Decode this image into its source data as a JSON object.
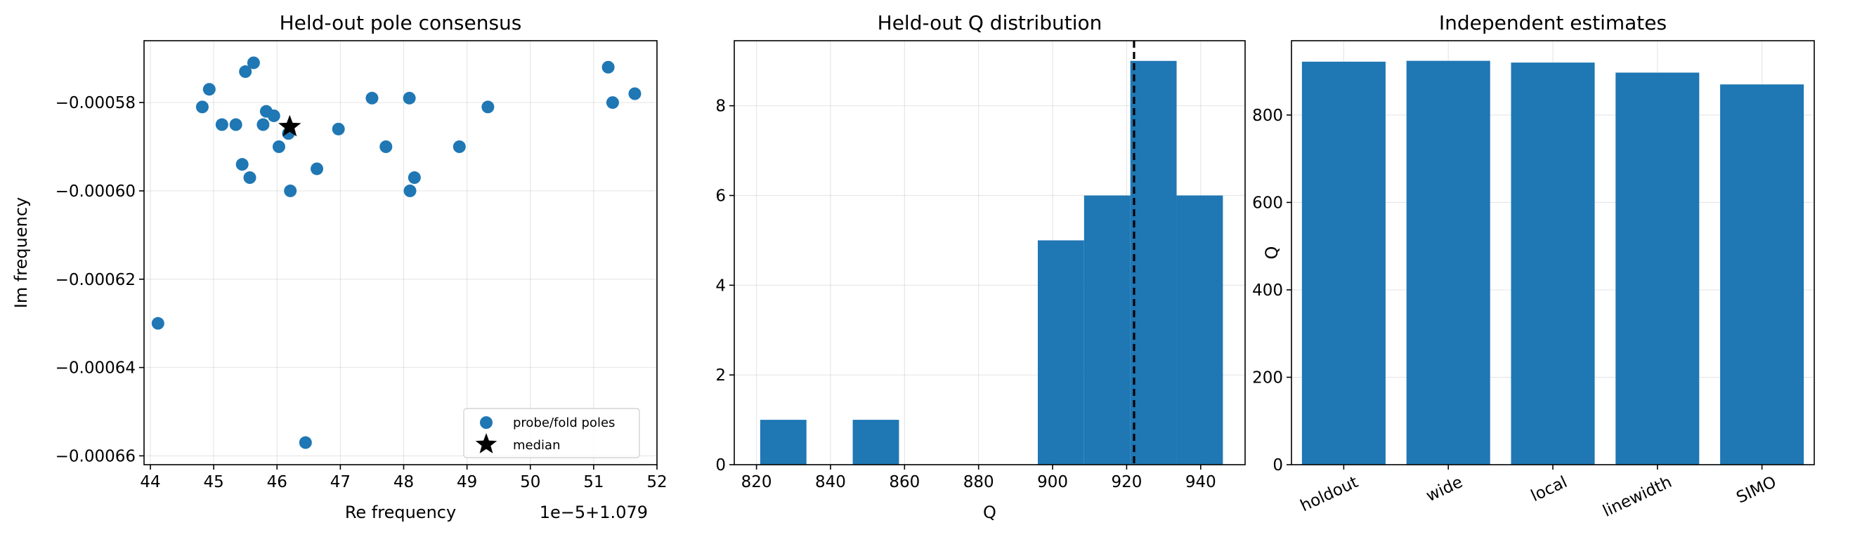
{
  "chart_data": [
    {
      "type": "scatter",
      "title": "Held-out pole consensus",
      "xlabel": "Re frequency",
      "ylabel": "Im frequency",
      "x_offset_text": "1e−5+1.079",
      "xlim": [
        43.9,
        52.0
      ],
      "ylim": [
        -0.000662,
        -0.000566
      ],
      "xticks": [
        44,
        45,
        46,
        47,
        48,
        49,
        50,
        51,
        52
      ],
      "xtick_labels": [
        "44",
        "45",
        "46",
        "47",
        "48",
        "49",
        "50",
        "51",
        "52"
      ],
      "yticks": [
        -0.00066,
        -0.00064,
        -0.00062,
        -0.0006,
        -0.00058
      ],
      "ytick_labels": [
        "−0.00066",
        "−0.00064",
        "−0.00062",
        "−0.00060",
        "−0.00058"
      ],
      "grid": true,
      "legend_position": "lower-right",
      "series": [
        {
          "name": "probe/fold poles",
          "marker": "circle",
          "color": "#1f77b4",
          "points": [
            [
              44.12,
              -0.00063
            ],
            [
              44.82,
              -0.000581
            ],
            [
              44.93,
              -0.000577
            ],
            [
              45.13,
              -0.000585
            ],
            [
              45.35,
              -0.000585
            ],
            [
              45.45,
              -0.000594
            ],
            [
              45.5,
              -0.000573
            ],
            [
              45.57,
              -0.000597
            ],
            [
              45.63,
              -0.000571
            ],
            [
              45.78,
              -0.000585
            ],
            [
              45.83,
              -0.000582
            ],
            [
              45.95,
              -0.000583
            ],
            [
              46.03,
              -0.00059
            ],
            [
              46.18,
              -0.000587
            ],
            [
              46.21,
              -0.0006
            ],
            [
              46.45,
              -0.000657
            ],
            [
              46.63,
              -0.000595
            ],
            [
              46.97,
              -0.000586
            ],
            [
              47.5,
              -0.000579
            ],
            [
              47.72,
              -0.00059
            ],
            [
              48.09,
              -0.000579
            ],
            [
              48.1,
              -0.0006
            ],
            [
              48.17,
              -0.000597
            ],
            [
              48.88,
              -0.00059
            ],
            [
              49.33,
              -0.000581
            ],
            [
              51.23,
              -0.000572
            ],
            [
              51.3,
              -0.00058
            ],
            [
              51.65,
              -0.000578
            ]
          ]
        },
        {
          "name": "median",
          "marker": "star",
          "color": "#000000",
          "points": [
            [
              46.2,
              -0.0005855
            ]
          ]
        }
      ]
    },
    {
      "type": "bar",
      "title": "Held-out Q distribution",
      "xlabel": "Q",
      "ylabel": "",
      "xlim": [
        814,
        952
      ],
      "ylim": [
        0,
        9.45
      ],
      "xticks": [
        820,
        840,
        860,
        880,
        900,
        920,
        940
      ],
      "xtick_labels": [
        "820",
        "840",
        "860",
        "880",
        "900",
        "920",
        "940"
      ],
      "yticks": [
        0,
        2,
        4,
        6,
        8
      ],
      "ytick_labels": [
        "0",
        "2",
        "4",
        "6",
        "8"
      ],
      "grid": true,
      "histogram": true,
      "color": "#1f77b4",
      "bins": [
        [
          821.0,
          833.5,
          1
        ],
        [
          833.5,
          846.0,
          0
        ],
        [
          846.0,
          858.5,
          1
        ],
        [
          858.5,
          871.0,
          0
        ],
        [
          871.0,
          883.5,
          0
        ],
        [
          883.5,
          896.0,
          0
        ],
        [
          896.0,
          908.5,
          5
        ],
        [
          908.5,
          921.0,
          6
        ],
        [
          921.0,
          933.5,
          9
        ],
        [
          933.5,
          946.0,
          6
        ]
      ],
      "median_line": 922.0
    },
    {
      "type": "bar",
      "title": "Independent estimates",
      "xlabel": "",
      "ylabel": "Q",
      "ylim": [
        0,
        970
      ],
      "yticks": [
        0,
        200,
        400,
        600,
        800
      ],
      "ytick_labels": [
        "0",
        "200",
        "400",
        "600",
        "800"
      ],
      "grid": true,
      "color": "#1f77b4",
      "categories": [
        "holdout",
        "wide",
        "local",
        "linewidth",
        "SIMO"
      ],
      "values": [
        922,
        924,
        920,
        897,
        870
      ]
    }
  ]
}
